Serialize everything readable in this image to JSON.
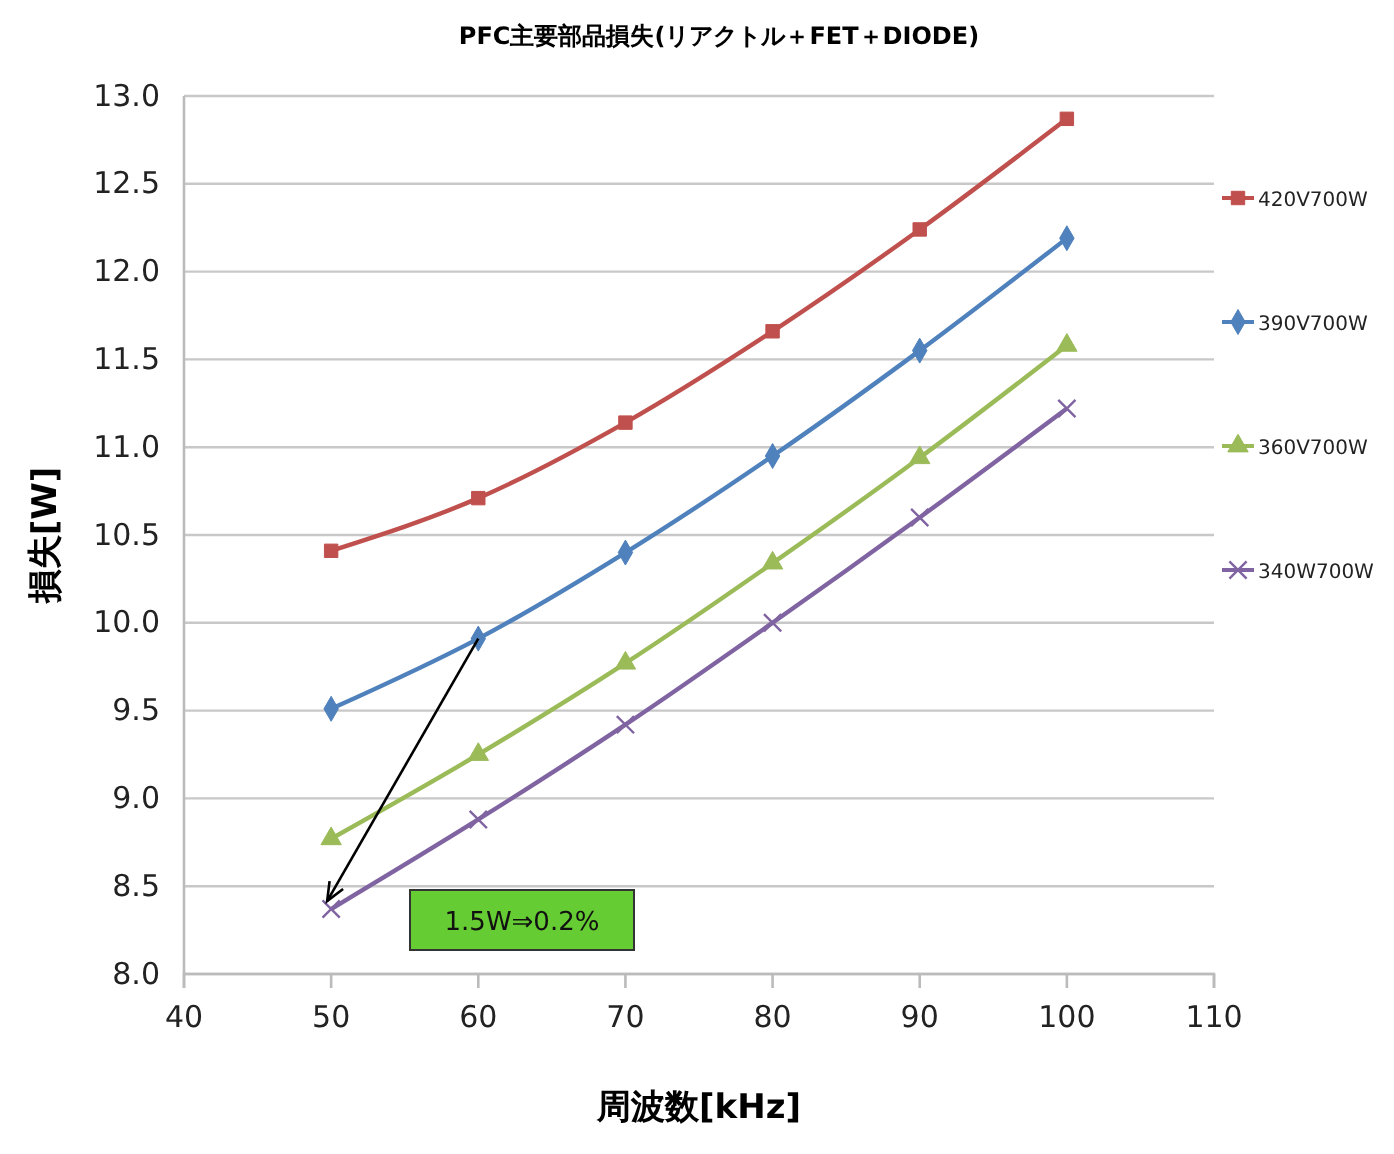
{
  "chart_data": {
    "type": "line",
    "title": "PFC主要部品損失(リアクトル＋FET＋DIODE)",
    "xlabel": "周波数[kHz]",
    "ylabel": "損失[W]",
    "x": [
      50,
      60,
      70,
      80,
      90,
      100
    ],
    "xlim": [
      40,
      110
    ],
    "xticks": [
      40,
      50,
      60,
      70,
      80,
      90,
      100,
      110
    ],
    "ylim": [
      8.0,
      13.0
    ],
    "yticks": [
      {
        "value": 8,
        "label": "8.0"
      },
      {
        "value": 8.5,
        "label": "8.5"
      },
      {
        "value": 9,
        "label": "9.0"
      },
      {
        "value": 9.5,
        "label": "9.5"
      },
      {
        "value": 10,
        "label": "10.0"
      },
      {
        "value": 10.5,
        "label": "10.5"
      },
      {
        "value": 11,
        "label": "11.0"
      },
      {
        "value": 11.5,
        "label": "11.5"
      },
      {
        "value": 12,
        "label": "12.0"
      },
      {
        "value": 12.5,
        "label": "12.5"
      },
      {
        "value": 13,
        "label": "13.0"
      }
    ],
    "grid": "y",
    "legend": "right",
    "series": [
      {
        "name": "420V700W",
        "color": "#c0504d",
        "marker": "square",
        "values": [
          10.41,
          10.71,
          11.14,
          11.66,
          12.24,
          12.87
        ]
      },
      {
        "name": "390V700W",
        "color": "#4f81bd",
        "marker": "diamond",
        "values": [
          9.51,
          9.91,
          10.4,
          10.95,
          11.55,
          12.19
        ]
      },
      {
        "name": "360V700W",
        "color": "#9bbb59",
        "marker": "triangle",
        "values": [
          8.77,
          9.25,
          9.77,
          10.34,
          10.94,
          11.58
        ]
      },
      {
        "name": "340W700W",
        "color": "#8064a2",
        "marker": "cross",
        "values": [
          8.37,
          8.88,
          9.42,
          10.0,
          10.6,
          11.22
        ]
      }
    ],
    "annotations": [
      "1.5W⇒0.2%"
    ]
  }
}
